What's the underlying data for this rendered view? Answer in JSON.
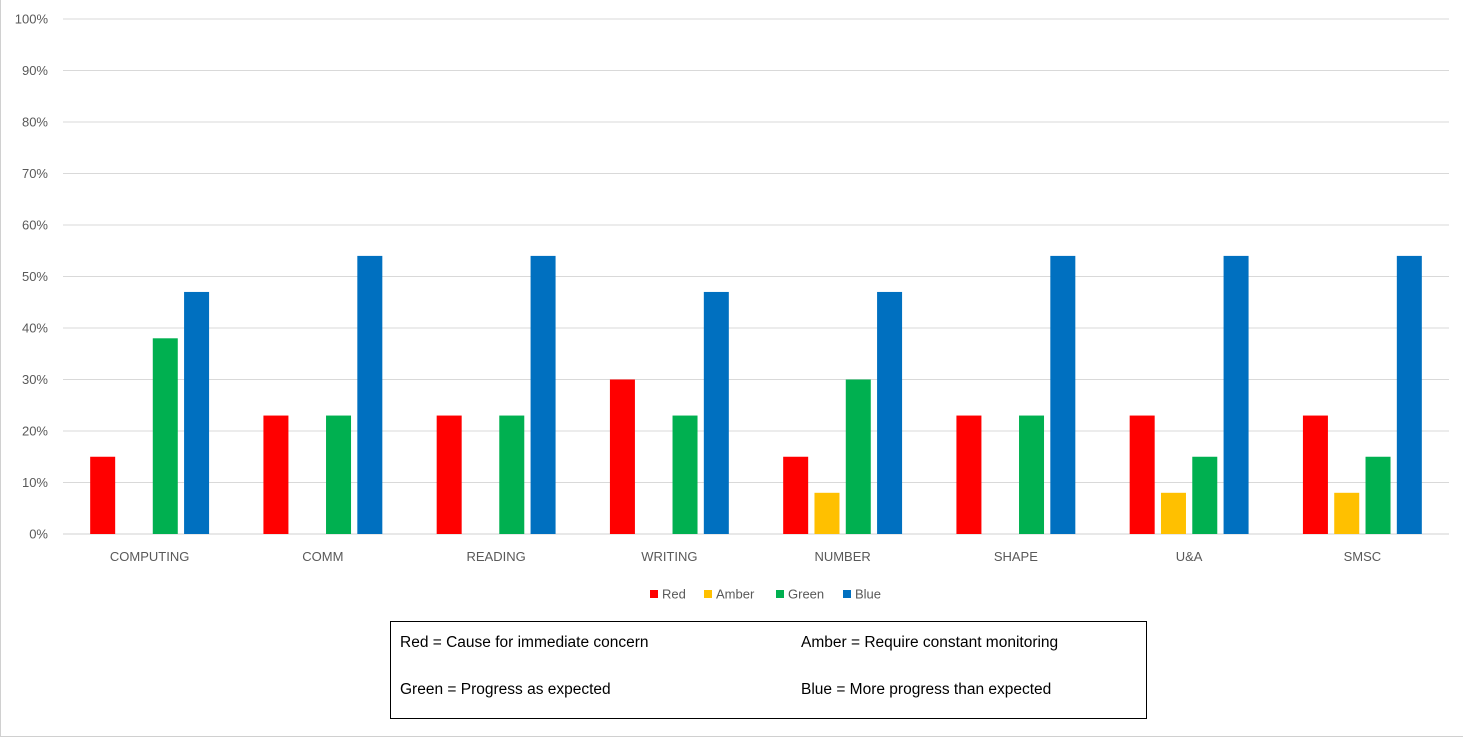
{
  "chart_data": {
    "type": "bar",
    "title": "",
    "xlabel": "",
    "ylabel": "",
    "categories": [
      "COMPUTING",
      "COMM",
      "READING",
      "WRITING",
      "NUMBER",
      "SHAPE",
      "U&A",
      "SMSC"
    ],
    "ylim": [
      0,
      100
    ],
    "yticks": [
      "0%",
      "10%",
      "20%",
      "30%",
      "40%",
      "50%",
      "60%",
      "70%",
      "80%",
      "90%",
      "100%"
    ],
    "grid": true,
    "legend_position": "bottom",
    "series": [
      {
        "name": "Red",
        "color": "#ff0000",
        "values": [
          15,
          23,
          23,
          30,
          15,
          23,
          23,
          23
        ]
      },
      {
        "name": "Amber",
        "color": "#ffc000",
        "values": [
          0,
          0,
          0,
          0,
          8,
          0,
          8,
          8
        ]
      },
      {
        "name": "Green",
        "color": "#00b050",
        "values": [
          38,
          23,
          23,
          23,
          30,
          23,
          15,
          15
        ]
      },
      {
        "name": "Blue",
        "color": "#0070c0",
        "values": [
          47,
          54,
          54,
          47,
          47,
          54,
          54,
          54
        ]
      }
    ]
  },
  "key": {
    "red": "Red = Cause for immediate concern",
    "amber": "Amber = Require constant monitoring",
    "green": "Green = Progress as expected",
    "blue": "Blue = More progress than expected"
  }
}
